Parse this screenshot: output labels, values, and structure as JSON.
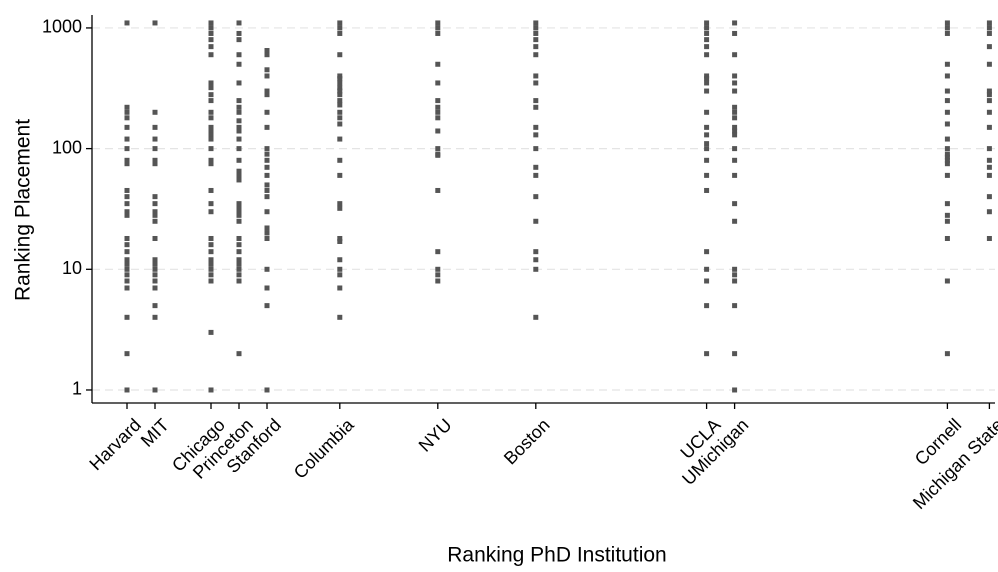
{
  "chart_data": {
    "type": "scatter",
    "x_label": "Ranking PhD Institution",
    "y_label": "Ranking Placement",
    "color": "#555555",
    "log_y": true,
    "grid": true,
    "xlim": [
      -0.25,
      32.0
    ],
    "ylim": [
      0.78,
      1280
    ],
    "yticks": [
      1,
      10,
      100,
      1000
    ],
    "xticks": [
      {
        "value": 1,
        "label": "Harvard"
      },
      {
        "value": 2,
        "label": "MIT"
      },
      {
        "value": 4,
        "label": "Chicago"
      },
      {
        "value": 5,
        "label": "Princeton"
      },
      {
        "value": 6,
        "label": "Stanford"
      },
      {
        "value": 8.6,
        "label": "Columbia"
      },
      {
        "value": 12.1,
        "label": "NYU"
      },
      {
        "value": 15.6,
        "label": "Boston"
      },
      {
        "value": 21.7,
        "label": "UCLA"
      },
      {
        "value": 22.7,
        "label": "UMichigan"
      },
      {
        "value": 30.3,
        "label": "Cornell"
      },
      {
        "value": 31.8,
        "label": "Michigan State"
      }
    ],
    "groups": [
      {
        "x": 1,
        "values": [
          1100,
          220,
          200,
          180,
          150,
          120,
          100,
          80,
          75,
          45,
          40,
          35,
          30,
          28,
          18,
          16,
          14,
          12,
          11,
          10,
          9,
          8,
          7,
          4,
          2,
          1
        ]
      },
      {
        "x": 2,
        "values": [
          1100,
          200,
          150,
          120,
          100,
          80,
          75,
          40,
          35,
          30,
          28,
          25,
          18,
          12,
          11,
          10,
          9,
          8,
          7,
          5,
          4,
          1
        ]
      },
      {
        "x": 4,
        "values": [
          1100,
          1000,
          900,
          800,
          700,
          600,
          350,
          320,
          280,
          250,
          200,
          180,
          150,
          140,
          130,
          120,
          100,
          80,
          75,
          45,
          35,
          30,
          18,
          16,
          14,
          12,
          11,
          10,
          9,
          8,
          3,
          1
        ]
      },
      {
        "x": 5,
        "values": [
          1100,
          900,
          800,
          600,
          500,
          350,
          250,
          220,
          200,
          170,
          150,
          140,
          120,
          100,
          80,
          65,
          60,
          55,
          35,
          32,
          30,
          28,
          25,
          18,
          16,
          14,
          12,
          11,
          10,
          9,
          8,
          2
        ]
      },
      {
        "x": 6,
        "values": [
          650,
          600,
          450,
          400,
          300,
          280,
          200,
          150,
          100,
          90,
          80,
          70,
          60,
          50,
          45,
          40,
          30,
          22,
          20,
          18,
          10,
          7,
          5,
          1
        ]
      },
      {
        "x": 8.6,
        "values": [
          1100,
          1000,
          900,
          600,
          400,
          380,
          350,
          320,
          300,
          280,
          250,
          230,
          200,
          180,
          160,
          120,
          80,
          60,
          35,
          32,
          18,
          17,
          12,
          10,
          9,
          7,
          4
        ]
      },
      {
        "x": 12.1,
        "values": [
          1100,
          1000,
          900,
          500,
          350,
          250,
          220,
          200,
          180,
          140,
          100,
          90,
          88,
          45,
          14,
          10,
          9,
          8
        ]
      },
      {
        "x": 15.6,
        "values": [
          1100,
          1000,
          900,
          800,
          700,
          600,
          400,
          350,
          250,
          220,
          150,
          130,
          100,
          70,
          60,
          40,
          25,
          14,
          12,
          10,
          4
        ]
      },
      {
        "x": 21.7,
        "values": [
          1100,
          1000,
          900,
          800,
          700,
          600,
          400,
          380,
          350,
          300,
          200,
          150,
          130,
          110,
          100,
          80,
          60,
          45,
          14,
          10,
          8,
          5,
          2
        ]
      },
      {
        "x": 22.7,
        "values": [
          1100,
          900,
          600,
          400,
          350,
          300,
          220,
          200,
          180,
          150,
          140,
          130,
          100,
          80,
          60,
          35,
          25,
          10,
          9,
          8,
          5,
          2,
          1
        ]
      },
      {
        "x": 30.3,
        "values": [
          1100,
          1000,
          900,
          500,
          400,
          300,
          250,
          200,
          160,
          120,
          100,
          90,
          85,
          80,
          75,
          60,
          35,
          28,
          25,
          18,
          8,
          2
        ]
      },
      {
        "x": 31.8,
        "values": [
          1100,
          1000,
          900,
          700,
          500,
          300,
          280,
          250,
          200,
          150,
          100,
          80,
          70,
          60,
          40,
          30,
          18
        ]
      }
    ]
  }
}
